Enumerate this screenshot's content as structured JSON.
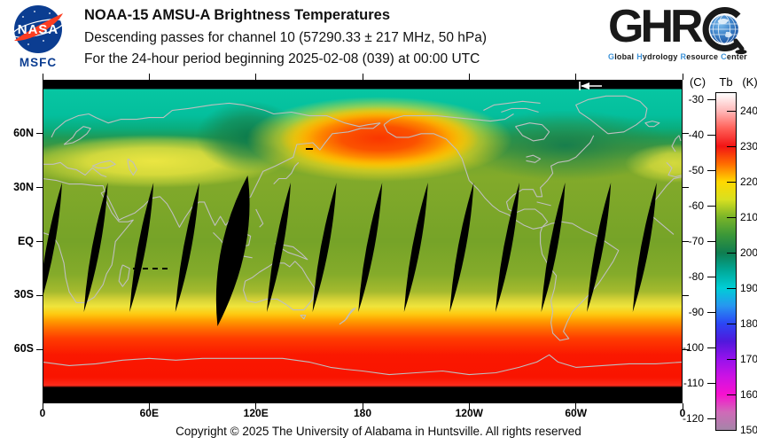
{
  "header": {
    "nasa": {
      "wordmark": "NASA",
      "caption": "MSFC"
    },
    "title": "NOAA-15 AMSU-A Brightness Temperatures",
    "subtitle1": "Descending passes for channel 10 (57290.33 ± 217 MHz, 50 hPa)",
    "subtitle2": "For the 24-hour period beginning 2025-02-08 (039) at 00:00 UTC",
    "ghrc": {
      "wordmark": "GHR",
      "tagline_words": [
        {
          "initial": "G",
          "rest": "lobal"
        },
        {
          "initial": "H",
          "rest": "ydrology"
        },
        {
          "initial": "R",
          "rest": "esource"
        },
        {
          "initial": "C",
          "rest": "enter"
        }
      ],
      "accent_color": "#3e93d8"
    }
  },
  "map": {
    "lat_tick_labels": [
      "60N",
      "30N",
      "EQ",
      "30S",
      "60S"
    ],
    "lon_tick_labels": [
      "0",
      "60E",
      "120E",
      "180",
      "120W",
      "60W",
      "0"
    ],
    "pass_direction_arrow": "←",
    "coastline_color": "#bfbfbf",
    "no_data_color": "#000000"
  },
  "colorbar": {
    "unit_left": "(C)",
    "quantity": "Tb",
    "unit_right": "(K)",
    "celsius_tick_labels": [
      "-30",
      "-40",
      "-50",
      "-60",
      "-70",
      "-80",
      "-90",
      "-100",
      "-110",
      "-120"
    ],
    "kelvin_tick_labels": [
      "240",
      "230",
      "220",
      "210",
      "200",
      "190",
      "180",
      "170",
      "160",
      "150"
    ],
    "range_k": [
      150,
      245
    ]
  },
  "footer": {
    "copyright": "Copyright © 2025 The University of Alabama in Huntsville.  All rights reserved"
  }
}
